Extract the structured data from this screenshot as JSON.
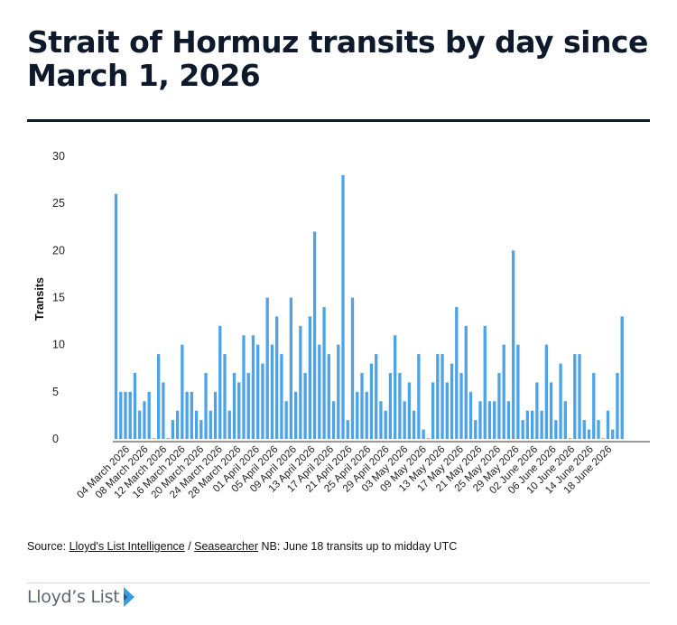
{
  "header": {
    "title": "Strait of Hormuz transits by day since March 1, 2026"
  },
  "chart_data": {
    "type": "bar",
    "title": "Strait of Hormuz transits by day since March 1, 2026",
    "ylabel": "Transits",
    "xlabel": "",
    "ylim": [
      0,
      30
    ],
    "yticks": [
      0,
      5,
      10,
      15,
      20,
      25,
      30
    ],
    "grid": false,
    "bar_color": "#4da3e8",
    "tick_labels": [
      "04 March 2026",
      "08 March 2026",
      "12 March 2026",
      "16 March 2026",
      "20 March 2026",
      "24 March 2026",
      "28 March 2026",
      "01 April 2026",
      "05 April 2026",
      "09 April 2026",
      "13 April 2026",
      "17 April 2026",
      "21 April 2026",
      "25 April 2026",
      "29 April 2026",
      "03 May 2026",
      "09 May 2026",
      "13 May 2026",
      "17 May 2026",
      "21 May 2026",
      "25 May 2026",
      "29 May 2026",
      "02 June 2026",
      "06 June 2026",
      "10 June 2026",
      "14 June 2026",
      "18 June 2026"
    ],
    "values": [
      26,
      5,
      5,
      5,
      7,
      3,
      4,
      5,
      0,
      9,
      6,
      0,
      2,
      3,
      10,
      5,
      5,
      3,
      2,
      7,
      3,
      5,
      12,
      9,
      3,
      7,
      6,
      11,
      7,
      11,
      10,
      8,
      15,
      10,
      13,
      9,
      4,
      15,
      5,
      12,
      7,
      13,
      22,
      10,
      14,
      9,
      4,
      10,
      28,
      2,
      15,
      5,
      7,
      5,
      8,
      9,
      4,
      3,
      7,
      11,
      7,
      4,
      6,
      3,
      9,
      1,
      0,
      6,
      9,
      9,
      6,
      8,
      14,
      7,
      12,
      5,
      2,
      4,
      12,
      4,
      4,
      7,
      10,
      4,
      20,
      10,
      2,
      3,
      3,
      6,
      3,
      10,
      6,
      2,
      8,
      4,
      0,
      9,
      9,
      2,
      1,
      7,
      2,
      0,
      3,
      1,
      7,
      13
    ]
  },
  "footer": {
    "source_prefix": "Source: ",
    "source_link1": "Lloyd's List Intelligence",
    "source_sep": " / ",
    "source_link2": "Seasearcher",
    "source_note": " NB: June 18 transits up to midday UTC",
    "logo_text": "Lloyd’s List"
  }
}
